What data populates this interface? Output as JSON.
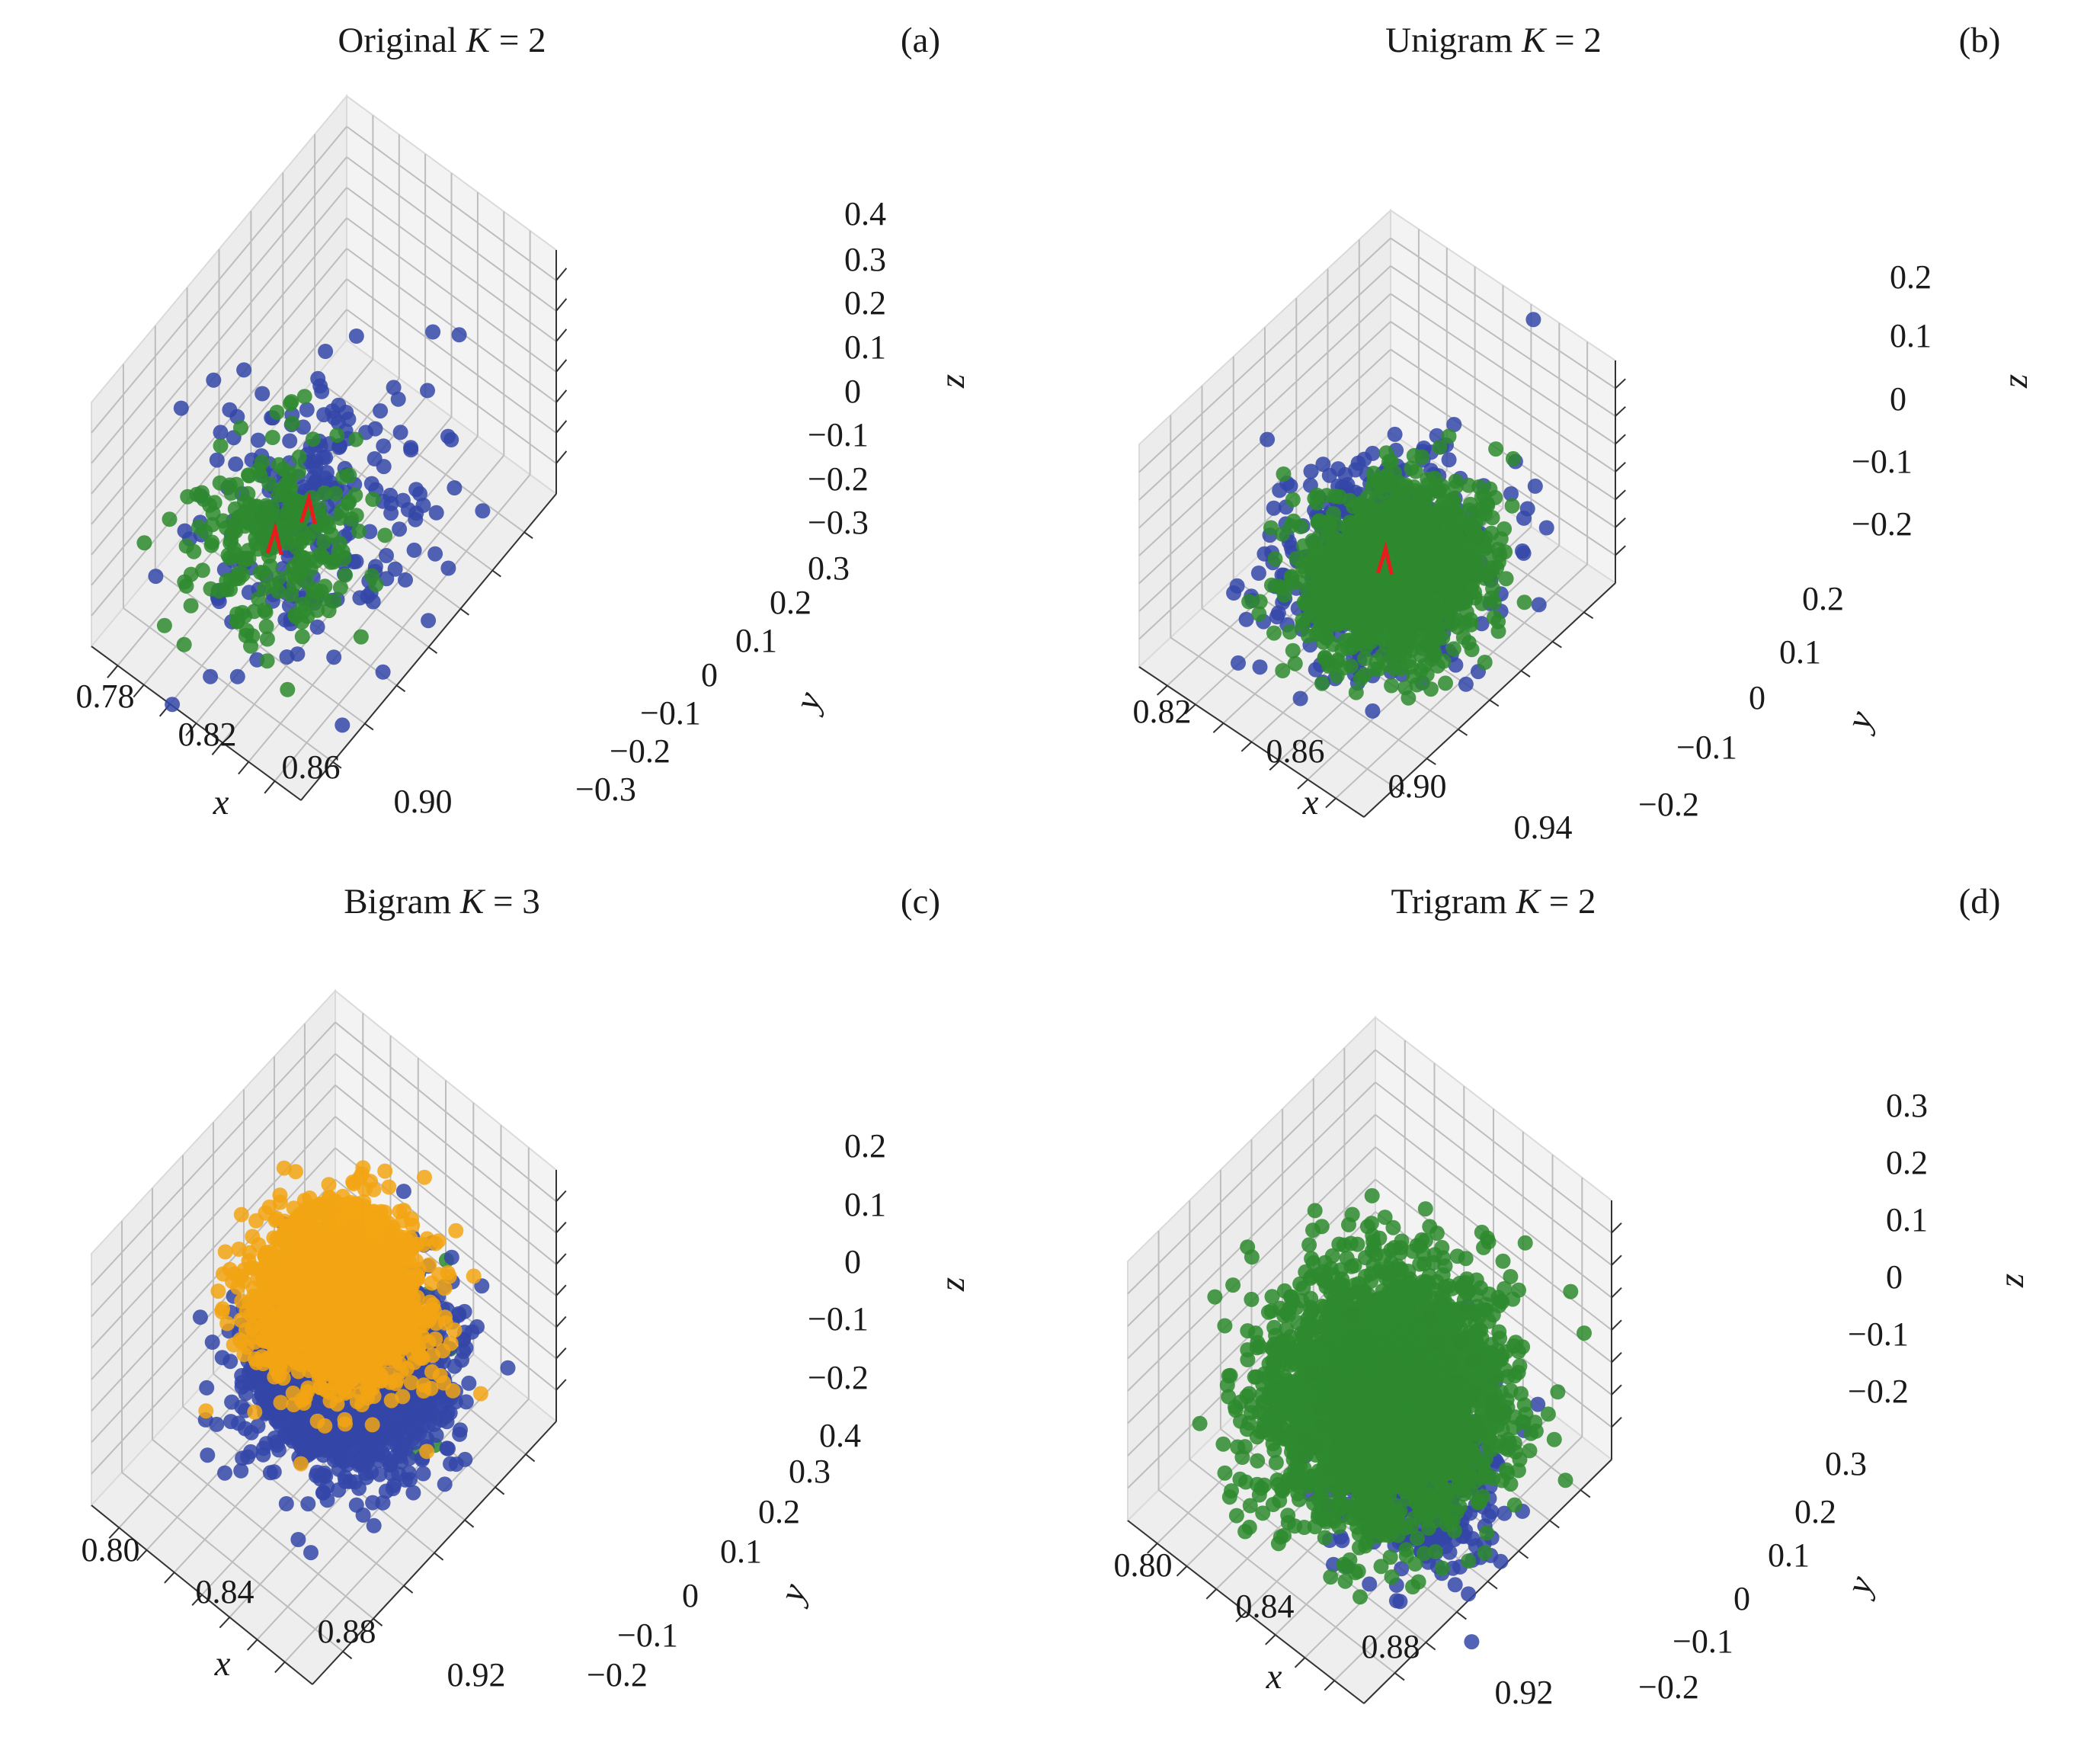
{
  "figure": {
    "colors": {
      "blue": "#3446a8",
      "green": "#2e8a2e",
      "orange": "#f2a413",
      "red": "#e81c1c",
      "pane": "#f0f0f0",
      "pane_edge": "#dadada",
      "grid": "#bdbdbd"
    }
  },
  "chart_data": [
    {
      "type": "scatter",
      "title_prefix": "Original ",
      "title_var": "K",
      "title_suffix": " = 2",
      "panel_label": "(a)",
      "xlabel": "x",
      "ylabel": "y",
      "zlabel": "z",
      "xticks": [
        "0.78",
        "0.82",
        "0.86",
        "0.90"
      ],
      "yticks": [
        "0.3",
        "0.2",
        "0.1",
        "0",
        "−0.1",
        "−0.2",
        "−0.3"
      ],
      "zticks": [
        "0.4",
        "0.3",
        "0.2",
        "0.1",
        "0",
        "−0.1",
        "−0.2",
        "−0.3"
      ],
      "clusters": [
        {
          "color": "blue",
          "x": 0.83,
          "y": 0.0,
          "z": -0.2,
          "spread": [
            0.035,
            0.11,
            0.07
          ],
          "count": 240
        },
        {
          "color": "green",
          "x": 0.86,
          "y": 0.18,
          "z": 0.05,
          "spread": [
            0.03,
            0.08,
            0.09
          ],
          "count": 240
        }
      ],
      "centroids": [
        {
          "color": "red",
          "x": 0.83,
          "y": 0.0,
          "z": -0.2
        },
        {
          "color": "red",
          "x": 0.86,
          "y": 0.18,
          "z": 0.05
        }
      ]
    },
    {
      "type": "scatter",
      "title_prefix": "Unigram ",
      "title_var": "K",
      "title_suffix": " = 2",
      "panel_label": "(b)",
      "xlabel": "x",
      "ylabel": "y",
      "zlabel": "z",
      "xticks": [
        "0.82",
        "0.86",
        "0.90",
        "0.94"
      ],
      "yticks": [
        "0.2",
        "0.1",
        "0",
        "−0.1",
        "−0.2"
      ],
      "zticks": [
        "0.2",
        "0.1",
        "0",
        "−0.1",
        "−0.2"
      ],
      "clusters": [
        {
          "color": "blue",
          "x": 0.905,
          "y": 0.07,
          "z": 0.06,
          "spread": [
            0.025,
            0.07,
            0.08
          ],
          "count": 600
        },
        {
          "color": "green",
          "x": 0.88,
          "y": -0.02,
          "z": -0.12,
          "spread": [
            0.02,
            0.06,
            0.05
          ],
          "count": 1500
        }
      ],
      "centroids": [
        {
          "color": "red",
          "x": 0.89,
          "y": 0.03,
          "z": -0.02
        }
      ]
    },
    {
      "type": "scatter",
      "title_prefix": "Bigram ",
      "title_var": "K",
      "title_suffix": " = 3",
      "panel_label": "(c)",
      "xlabel": "x",
      "ylabel": "y",
      "zlabel": "z",
      "xticks": [
        "0.80",
        "0.84",
        "0.88",
        "0.92"
      ],
      "yticks": [
        "0.4",
        "0.3",
        "0.2",
        "0.1",
        "0",
        "−0.1",
        "−0.2"
      ],
      "zticks": [
        "0.2",
        "0.1",
        "0",
        "−0.1",
        "−0.2"
      ],
      "clusters": [
        {
          "color": "green",
          "x": 0.88,
          "y": 0.06,
          "z": 0.0,
          "spread": [
            0.02,
            0.06,
            0.06
          ],
          "count": 120
        },
        {
          "color": "blue",
          "x": 0.855,
          "y": 0.0,
          "z": -0.15,
          "spread": [
            0.022,
            0.08,
            0.05
          ],
          "count": 2200
        },
        {
          "color": "orange",
          "x": 0.86,
          "y": 0.04,
          "z": 0.06,
          "spread": [
            0.02,
            0.07,
            0.05
          ],
          "count": 2000
        }
      ],
      "centroids": []
    },
    {
      "type": "scatter",
      "title_prefix": "Trigram ",
      "title_var": "K",
      "title_suffix": " = 2",
      "panel_label": "(d)",
      "xlabel": "x",
      "ylabel": "y",
      "zlabel": "z",
      "xticks": [
        "0.80",
        "0.84",
        "0.88",
        "0.92"
      ],
      "yticks": [
        "0.3",
        "0.2",
        "0.1",
        "0",
        "−0.1",
        "−0.2"
      ],
      "zticks": [
        "0.3",
        "0.2",
        "0.1",
        "0",
        "−0.1",
        "−0.2"
      ],
      "clusters": [
        {
          "color": "blue",
          "x": 0.91,
          "y": 0.15,
          "z": 0.06,
          "spread": [
            0.02,
            0.06,
            0.08
          ],
          "count": 700
        },
        {
          "color": "green",
          "x": 0.86,
          "y": 0.02,
          "z": -0.06,
          "spread": [
            0.025,
            0.09,
            0.08
          ],
          "count": 3000
        }
      ],
      "centroids": []
    }
  ]
}
